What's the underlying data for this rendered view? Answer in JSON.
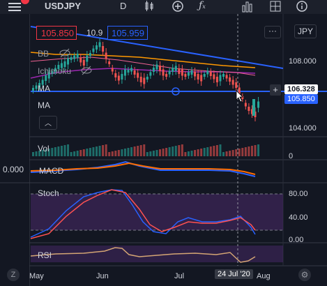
{
  "toolbar": {
    "symbol": "USDJPY",
    "interval": "D",
    "menu_icon": "menu-icon",
    "badge_color": "#f23645"
  },
  "price_scale": {
    "currency": "JPY",
    "levels": [
      "108.000",
      "104.000"
    ],
    "crosshair_price": "106.328",
    "last_price": "105.850",
    "last_price_color": "#089981",
    "crosshair_color": "#ffffff"
  },
  "order_panel": {
    "sell_price": "105.850",
    "spread": "10.9",
    "buy_price": "105.959"
  },
  "legend": {
    "bb": "BB",
    "ichimoku": "Ichimoku",
    "ma1": "MA",
    "ma2": "MA"
  },
  "volume": {
    "label": "Vol",
    "zero": "0"
  },
  "macd": {
    "label": "MACD",
    "value": "0.000"
  },
  "stoch": {
    "label": "Stoch",
    "levels": [
      "80.00",
      "40.00",
      "0.00"
    ]
  },
  "rsi": {
    "label": "RSI"
  },
  "time_axis": {
    "labels": [
      "May",
      "Jun",
      "Jul",
      "Aug"
    ],
    "crosshair_date": "24 Jul '20"
  },
  "bottom": {
    "left_icon": "Z"
  }
}
